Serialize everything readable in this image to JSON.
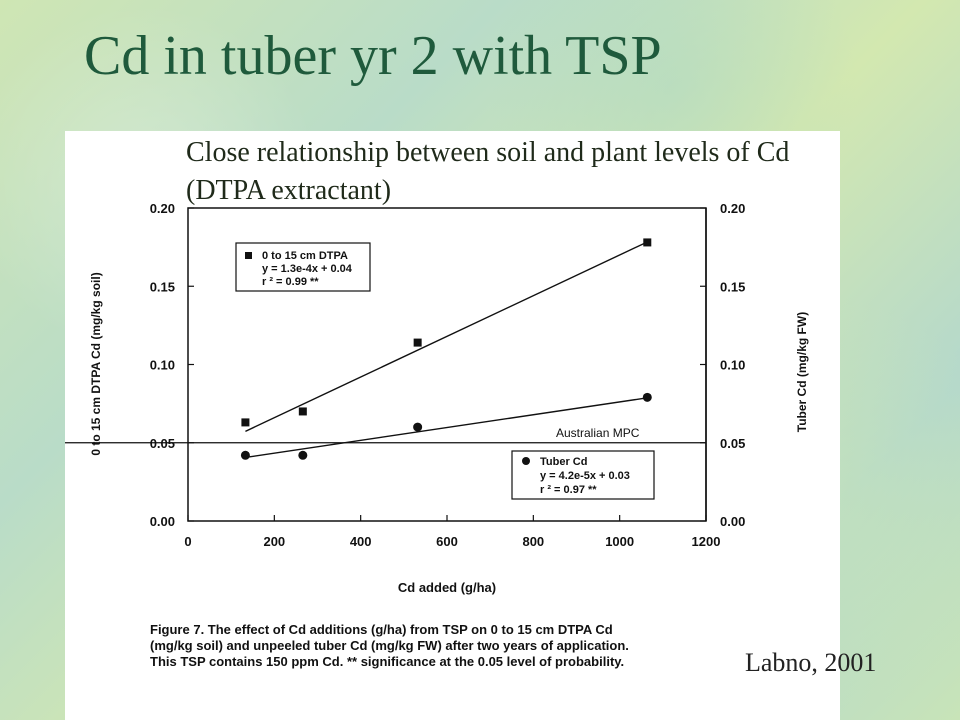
{
  "slide": {
    "title": "Cd in tuber yr 2 with TSP",
    "subtitle": "Close relationship between soil and plant levels of Cd (DTPA extractant)",
    "credit": "Labno, 2001"
  },
  "caption": {
    "lines": [
      "Figure 7. The effect of Cd additions (g/ha) from TSP on 0 to 15 cm DTPA Cd",
      "(mg/kg soil) and unpeeled tuber Cd (mg/kg FW) after two years of application.",
      "This TSP contains 150 ppm Cd. ** significance at the 0.05 level of probability."
    ]
  },
  "colors": {
    "title": "#1f5a3c",
    "ink": "#111111"
  },
  "chart_data": {
    "type": "scatter",
    "xlabel": "Cd added (g/ha)",
    "ylabel": "0 to 15 cm DTPA Cd (mg/kg soil)",
    "y2label": "Tuber Cd (mg/kg FW)",
    "xlim": [
      0,
      1200
    ],
    "ylim": [
      0,
      0.2
    ],
    "xticks": [
      "0",
      "200",
      "400",
      "600",
      "800",
      "1000",
      "1200"
    ],
    "yticks": [
      "0.00",
      "0.05",
      "0.10",
      "0.15",
      "0.20"
    ],
    "reference_line": {
      "label": "Australian MPC",
      "y": 0.05
    },
    "series": [
      {
        "name": "0 to 15 cm DTPA",
        "marker": "square",
        "x": [
          133,
          266,
          532,
          1064
        ],
        "y": [
          0.063,
          0.07,
          0.114,
          0.178
        ],
        "fit": [
          [
            133,
            0.0573
          ],
          [
            1064,
            0.1783
          ]
        ],
        "equation": "y = 1.3e-4x + 0.04",
        "r2": "r ² = 0.99 **"
      },
      {
        "name": "Tuber Cd",
        "marker": "circle",
        "x": [
          133,
          266,
          532,
          1064
        ],
        "y": [
          0.042,
          0.042,
          0.06,
          0.079
        ],
        "fit": [
          [
            133,
            0.0406
          ],
          [
            1064,
            0.0787
          ]
        ],
        "equation": "y = 4.2e-5x + 0.03",
        "r2": "r ² = 0.97 **"
      }
    ]
  }
}
